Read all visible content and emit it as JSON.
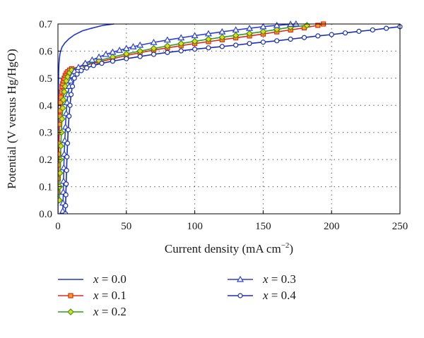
{
  "chart_data": {
    "type": "line",
    "xlabel": "Current density (mA cm",
    "xlabel_sup": "−2",
    "xlabel_close": ")",
    "ylabel": "Potential (V versus Hg/HgO)",
    "xlim": [
      0,
      250
    ],
    "ylim": [
      0,
      0.7
    ],
    "xticks": [
      0,
      50,
      100,
      150,
      200,
      250
    ],
    "yticks": [
      0.0,
      0.1,
      0.2,
      0.3,
      0.4,
      0.5,
      0.6,
      0.7
    ],
    "xtick_labels": [
      "0",
      "50",
      "100",
      "150",
      "200",
      "250"
    ],
    "ytick_labels": [
      "0.0",
      "0.1",
      "0.2",
      "0.3",
      "0.4",
      "0.5",
      "0.6",
      "0.7"
    ],
    "grid": "dotted",
    "legend_position": "bottom",
    "series": [
      {
        "name": "x = 0.0",
        "var": "x",
        "eq": " = 0.0",
        "color": "#1f35d6",
        "marker": "none",
        "x": [
          0.0,
          0.05,
          0.1,
          0.15,
          0.2,
          0.25,
          0.3,
          0.4,
          0.5,
          0.7,
          1.0,
          1.5,
          2,
          3,
          5,
          8,
          12,
          18,
          25,
          33,
          41
        ],
        "y": [
          0.0,
          0.1,
          0.2,
          0.28,
          0.35,
          0.4,
          0.44,
          0.48,
          0.52,
          0.55,
          0.57,
          0.59,
          0.6,
          0.615,
          0.63,
          0.645,
          0.66,
          0.675,
          0.685,
          0.695,
          0.7
        ]
      },
      {
        "name": "x = 0.1",
        "var": "x",
        "eq": " = 0.1",
        "color": "#e2281b",
        "marker": "square",
        "x": [
          0.0,
          0.2,
          0.4,
          0.6,
          0.8,
          1.0,
          1.2,
          1.4,
          1.6,
          1.9,
          2.2,
          2.6,
          3.0,
          3.5,
          4.0,
          4.6,
          5.3,
          6.2,
          7.2,
          8.5,
          10,
          20,
          30,
          40,
          50,
          60,
          70,
          80,
          90,
          100,
          110,
          120,
          130,
          140,
          150,
          160,
          170,
          180,
          190,
          194
        ],
        "y": [
          0.08,
          0.13,
          0.18,
          0.22,
          0.26,
          0.3,
          0.33,
          0.36,
          0.38,
          0.41,
          0.43,
          0.45,
          0.47,
          0.48,
          0.49,
          0.5,
          0.51,
          0.518,
          0.524,
          0.53,
          0.535,
          0.548,
          0.56,
          0.572,
          0.584,
          0.594,
          0.604,
          0.612,
          0.62,
          0.628,
          0.635,
          0.642,
          0.649,
          0.656,
          0.663,
          0.671,
          0.678,
          0.686,
          0.695,
          0.7
        ]
      },
      {
        "name": "x = 0.2",
        "var": "x",
        "eq": " = 0.2",
        "color": "#2e9d18",
        "marker": "diamond",
        "x": [
          1.0,
          1.2,
          1.5,
          1.8,
          2.1,
          2.5,
          3.0,
          3.5,
          4.0,
          4.6,
          5.3,
          6.2,
          7.2,
          8.5,
          10,
          20,
          30,
          40,
          50,
          60,
          70,
          80,
          90,
          100,
          110,
          120,
          130,
          140,
          150,
          160,
          170,
          182
        ],
        "y": [
          0.05,
          0.1,
          0.15,
          0.2,
          0.25,
          0.3,
          0.35,
          0.39,
          0.42,
          0.45,
          0.47,
          0.49,
          0.505,
          0.52,
          0.53,
          0.55,
          0.565,
          0.578,
          0.59,
          0.6,
          0.61,
          0.619,
          0.628,
          0.636,
          0.644,
          0.651,
          0.658,
          0.665,
          0.672,
          0.68,
          0.688,
          0.695
        ]
      },
      {
        "name": "x = 0.3",
        "var": "x",
        "eq": " = 0.3",
        "color": "#2a3fd8",
        "marker": "triangle",
        "x": [
          3.5,
          3.7,
          3.9,
          4.1,
          4.3,
          4.6,
          5.0,
          5.5,
          6.0,
          6.6,
          7.3,
          8.2,
          9.2,
          10.5,
          12,
          15,
          20,
          25,
          30,
          35,
          40,
          45,
          50,
          55,
          60,
          70,
          80,
          90,
          100,
          110,
          120,
          130,
          140,
          150,
          160,
          170,
          174
        ],
        "y": [
          0.01,
          0.04,
          0.08,
          0.12,
          0.17,
          0.22,
          0.27,
          0.32,
          0.37,
          0.41,
          0.44,
          0.47,
          0.49,
          0.51,
          0.525,
          0.54,
          0.555,
          0.567,
          0.578,
          0.588,
          0.596,
          0.603,
          0.61,
          0.616,
          0.622,
          0.632,
          0.641,
          0.649,
          0.657,
          0.664,
          0.671,
          0.678,
          0.684,
          0.69,
          0.695,
          0.699,
          0.7
        ]
      },
      {
        "name": "x = 0.4",
        "var": "x",
        "eq": " = 0.4",
        "color": "#1a2fb0",
        "marker": "circle",
        "x": [
          5.5,
          5.6,
          5.8,
          6.0,
          6.3,
          6.6,
          7.0,
          7.5,
          8.1,
          8.8,
          9.6,
          10.6,
          12,
          14,
          17,
          21,
          26,
          32,
          40,
          50,
          60,
          70,
          80,
          90,
          100,
          110,
          120,
          130,
          140,
          150,
          160,
          170,
          180,
          190,
          200,
          210,
          220,
          230,
          240,
          250
        ],
        "y": [
          0.0,
          0.03,
          0.07,
          0.11,
          0.16,
          0.21,
          0.26,
          0.31,
          0.36,
          0.4,
          0.44,
          0.47,
          0.5,
          0.515,
          0.528,
          0.538,
          0.547,
          0.555,
          0.563,
          0.572,
          0.58,
          0.588,
          0.595,
          0.601,
          0.607,
          0.612,
          0.617,
          0.622,
          0.628,
          0.633,
          0.638,
          0.644,
          0.65,
          0.656,
          0.661,
          0.667,
          0.673,
          0.678,
          0.684,
          0.69
        ]
      }
    ]
  }
}
